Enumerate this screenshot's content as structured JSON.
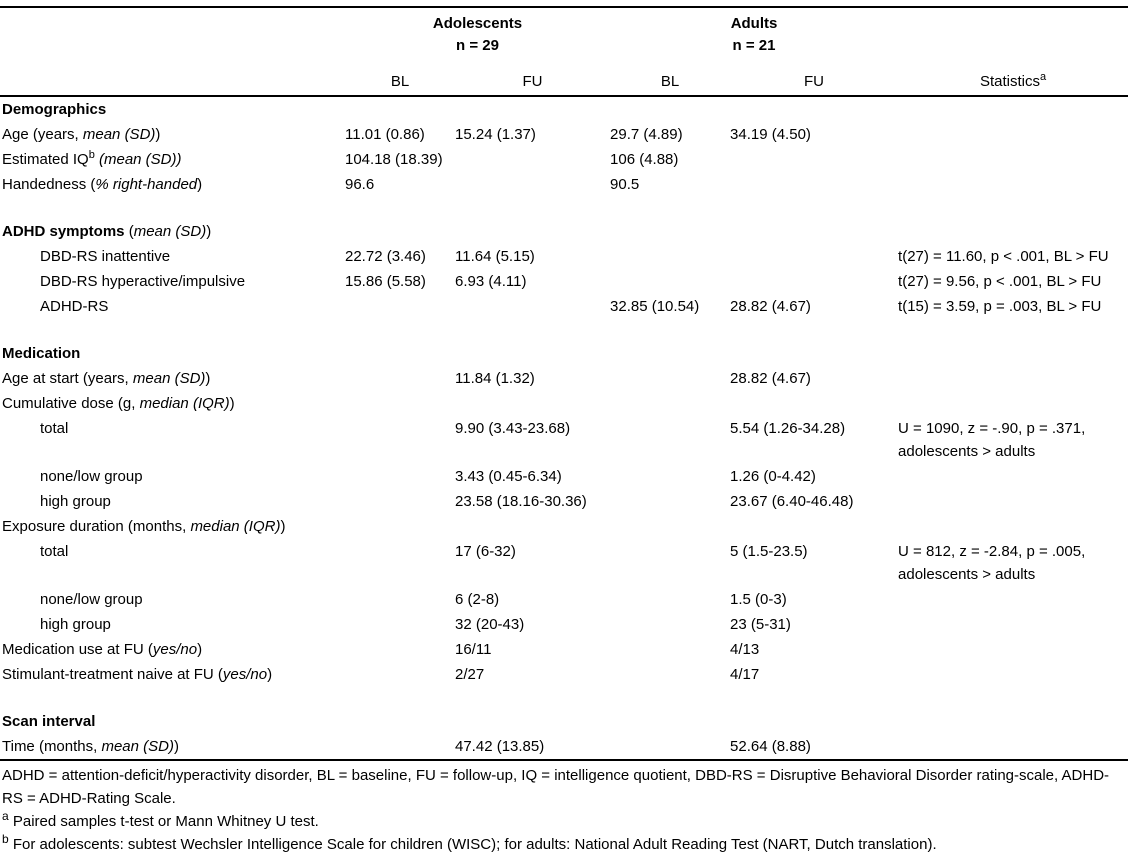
{
  "table": {
    "header": {
      "adolescents": {
        "title": "Adolescents",
        "n": "n = 29"
      },
      "adults": {
        "title": "Adults",
        "n": "n = 21"
      },
      "sub": [
        "BL",
        "FU",
        "BL",
        "FU"
      ],
      "stats": {
        "label": "Statistics",
        "sup": "a"
      }
    },
    "rows": [
      {
        "type": "section",
        "label": [
          {
            "t": "Demographics",
            "b": true
          }
        ],
        "cells": [
          "",
          "",
          "",
          "",
          ""
        ]
      },
      {
        "type": "data",
        "label": [
          {
            "t": "Age (years, "
          },
          {
            "t": "mean (SD)",
            "i": true
          },
          {
            "t": ")"
          }
        ],
        "cells": [
          "11.01 (0.86)",
          "15.24 (1.37)",
          "29.7 (4.89)",
          "34.19 (4.50)",
          ""
        ]
      },
      {
        "type": "data",
        "label": [
          {
            "t": "Estimated IQ"
          },
          {
            "t": "b",
            "sup": true
          },
          {
            "t": " "
          },
          {
            "t": "(mean (SD))",
            "i": true
          }
        ],
        "cells": [
          "104.18 (18.39)",
          "",
          "106 (4.88)",
          "",
          ""
        ]
      },
      {
        "type": "data",
        "label": [
          {
            "t": "Handedness ("
          },
          {
            "t": "% right-handed",
            "i": true
          },
          {
            "t": ")"
          }
        ],
        "cells": [
          "96.6",
          "",
          "90.5",
          "",
          ""
        ]
      },
      {
        "type": "spacer"
      },
      {
        "type": "section",
        "label": [
          {
            "t": "ADHD symptoms",
            "b": true
          },
          {
            "t": " ("
          },
          {
            "t": "mean (SD)",
            "i": true
          },
          {
            "t": ")"
          }
        ],
        "cells": [
          "",
          "",
          "",
          "",
          ""
        ]
      },
      {
        "type": "data",
        "indent": true,
        "label": [
          {
            "t": "DBD-RS inattentive"
          }
        ],
        "cells": [
          "22.72 (3.46)",
          "11.64 (5.15)",
          "",
          "",
          "t(27) = 11.60, p < .001, BL > FU"
        ]
      },
      {
        "type": "data",
        "indent": true,
        "label": [
          {
            "t": "DBD-RS hyperactive/impulsive"
          }
        ],
        "cells": [
          "15.86 (5.58)",
          "6.93 (4.11)",
          "",
          "",
          "t(27) = 9.56, p < .001, BL > FU"
        ]
      },
      {
        "type": "data",
        "indent": true,
        "label": [
          {
            "t": "ADHD-RS"
          }
        ],
        "cells": [
          "",
          "",
          "32.85 (10.54)",
          "28.82 (4.67)",
          "t(15) = 3.59, p = .003, BL > FU"
        ]
      },
      {
        "type": "spacer"
      },
      {
        "type": "section",
        "label": [
          {
            "t": "Medication",
            "b": true
          }
        ],
        "cells": [
          "",
          "",
          "",
          "",
          ""
        ]
      },
      {
        "type": "data",
        "label": [
          {
            "t": "Age at start (years, "
          },
          {
            "t": "mean (SD)",
            "i": true
          },
          {
            "t": ")"
          }
        ],
        "cells": [
          "",
          "11.84 (1.32)",
          "",
          "28.82 (4.67)",
          ""
        ]
      },
      {
        "type": "data",
        "label": [
          {
            "t": "Cumulative dose (g, "
          },
          {
            "t": "median (IQR)",
            "i": true
          },
          {
            "t": ")"
          }
        ],
        "cells": [
          "",
          "",
          "",
          "",
          ""
        ]
      },
      {
        "type": "data",
        "indent": true,
        "label": [
          {
            "t": "total"
          }
        ],
        "cells": [
          "",
          "9.90 (3.43-23.68)",
          "",
          "5.54 (1.26-34.28)",
          "U = 1090, z = -.90, p = .371,\nadolescents > adults"
        ]
      },
      {
        "type": "data",
        "indent": true,
        "label": [
          {
            "t": "none/low group"
          }
        ],
        "cells": [
          "",
          "3.43 (0.45-6.34)",
          "",
          "1.26 (0-4.42)",
          ""
        ]
      },
      {
        "type": "data",
        "indent": true,
        "label": [
          {
            "t": "high group"
          }
        ],
        "cells": [
          "",
          "23.58 (18.16-30.36)",
          "",
          "23.67 (6.40-46.48)",
          ""
        ]
      },
      {
        "type": "data",
        "label": [
          {
            "t": "Exposure duration (months, "
          },
          {
            "t": "median (IQR)",
            "i": true
          },
          {
            "t": ")"
          }
        ],
        "cells": [
          "",
          "",
          "",
          "",
          ""
        ]
      },
      {
        "type": "data",
        "indent": true,
        "label": [
          {
            "t": "total"
          }
        ],
        "cells": [
          "",
          "17 (6-32)",
          "",
          "5 (1.5-23.5)",
          "U = 812, z = -2.84, p = .005,\nadolescents > adults"
        ]
      },
      {
        "type": "data",
        "indent": true,
        "label": [
          {
            "t": "none/low group"
          }
        ],
        "cells": [
          "",
          "6 (2-8)",
          "",
          "1.5 (0-3)",
          ""
        ]
      },
      {
        "type": "data",
        "indent": true,
        "label": [
          {
            "t": "high group"
          }
        ],
        "cells": [
          "",
          "32 (20-43)",
          "",
          "23 (5-31)",
          ""
        ]
      },
      {
        "type": "data",
        "label": [
          {
            "t": "Medication use at FU ("
          },
          {
            "t": "yes/no",
            "i": true
          },
          {
            "t": ")"
          }
        ],
        "cells": [
          "",
          "16/11",
          "",
          "4/13",
          ""
        ]
      },
      {
        "type": "data",
        "label": [
          {
            "t": "Stimulant-treatment naive at FU ("
          },
          {
            "t": "yes/no",
            "i": true
          },
          {
            "t": ")"
          }
        ],
        "cells": [
          "",
          "2/27",
          "",
          "4/17",
          ""
        ]
      },
      {
        "type": "spacer"
      },
      {
        "type": "section",
        "label": [
          {
            "t": "Scan interval",
            "b": true
          }
        ],
        "cells": [
          "",
          "",
          "",
          "",
          ""
        ]
      },
      {
        "type": "data",
        "label": [
          {
            "t": "Time (months, "
          },
          {
            "t": "mean (SD)",
            "i": true
          },
          {
            "t": ")"
          }
        ],
        "cells": [
          "",
          "47.42 (13.85)",
          "",
          "52.64 (8.88)",
          ""
        ]
      }
    ],
    "footnotes": [
      [
        {
          "t": "ADHD = attention-deficit/hyperactivity disorder, BL = baseline, FU = follow-up, IQ = intelligence quotient, DBD-RS = Disruptive Behavioral Disorder rating-scale, ADHD-RS = ADHD-Rating Scale."
        }
      ],
      [
        {
          "t": "a",
          "sup": true
        },
        {
          "t": " Paired samples t-test or Mann Whitney U test."
        }
      ],
      [
        {
          "t": "b",
          "sup": true
        },
        {
          "t": " For adolescents: subtest Wechsler Intelligence Scale for children (WISC); for adults: National Adult Reading Test (NART, Dutch translation)."
        }
      ]
    ]
  }
}
